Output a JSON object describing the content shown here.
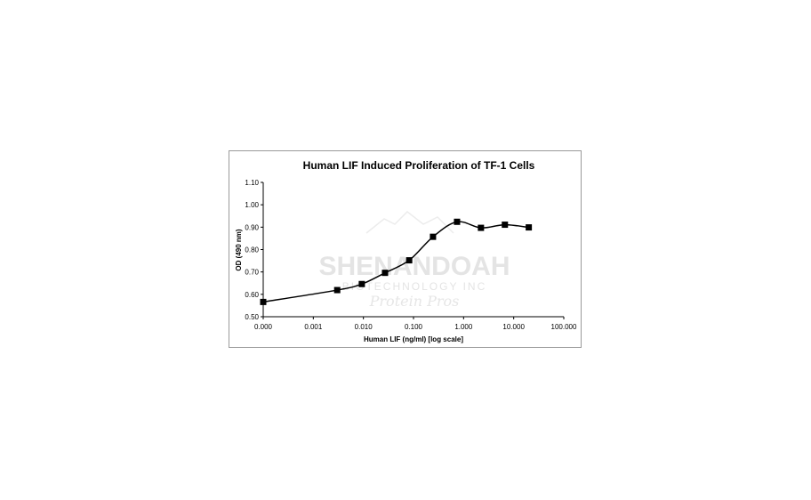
{
  "chart_data": {
    "type": "line",
    "title": "Human LIF Induced Proliferation of TF-1 Cells",
    "xlabel": "Human LIF (ng/ml) [log scale]",
    "ylabel": "OD (490 nm)",
    "x_scale": "log",
    "x_ticks": [
      "0.000",
      "0.001",
      "0.010",
      "0.100",
      "1.000",
      "10.000",
      "100.000"
    ],
    "y_ticks": [
      "0.50",
      "0.60",
      "0.70",
      "0.80",
      "0.90",
      "1.00",
      "1.10"
    ],
    "ylim": [
      0.5,
      1.1
    ],
    "grid": false,
    "legend": "none",
    "marker": "square",
    "series": [
      {
        "x": [
          0.0001,
          0.003,
          0.0093,
          0.027,
          0.082,
          0.245,
          0.74,
          2.22,
          6.67,
          20
        ],
        "y": [
          0.566,
          0.619,
          0.646,
          0.696,
          0.752,
          0.857,
          0.924,
          0.897,
          0.911,
          0.899
        ]
      }
    ]
  },
  "watermark": {
    "line1": "SHENANDOAH",
    "line2": "BIOTECHNOLOGY INC",
    "line3": "Protein Pros"
  }
}
